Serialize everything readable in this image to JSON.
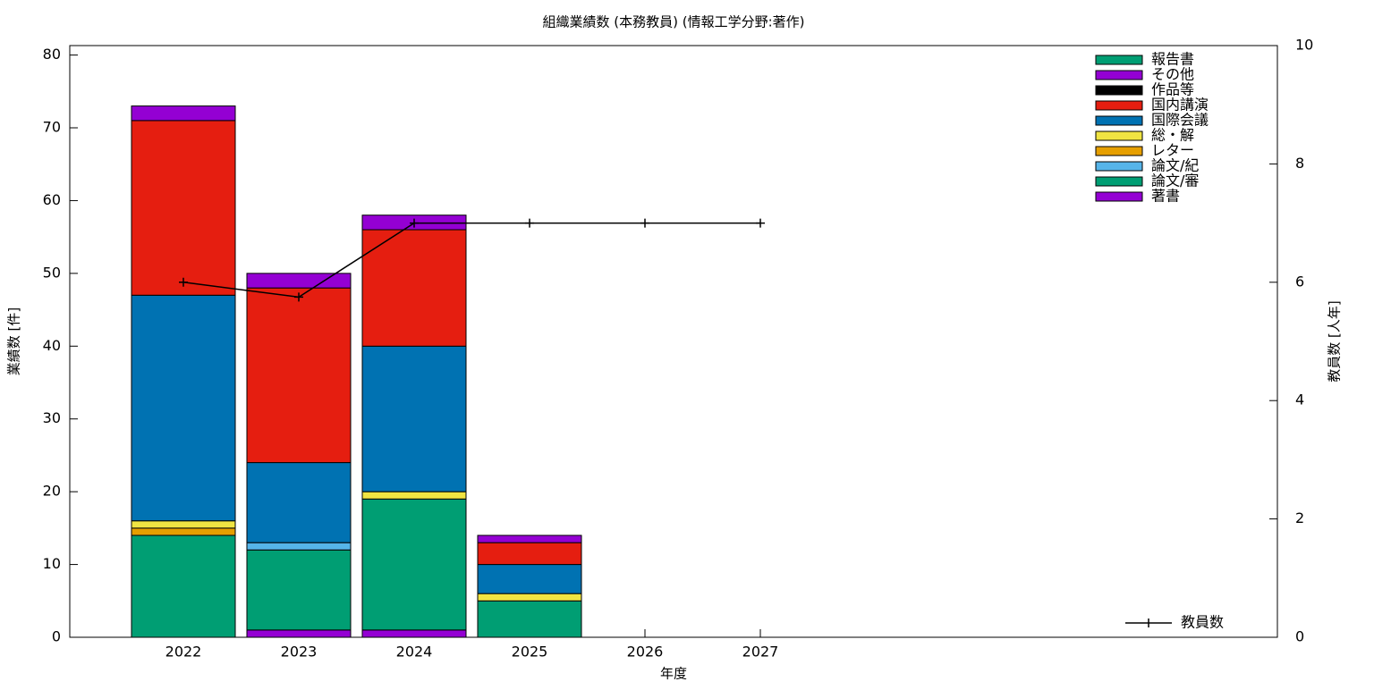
{
  "chart_data": {
    "type": "stacked-bar-line",
    "title": "組織業績数 (本務教員) (情報工学分野:著作)",
    "x_label": "年度",
    "y_label": "業績数 [件]",
    "y2_label": "教員数 [人年]",
    "categories": [
      "2022",
      "2023",
      "2024",
      "2025",
      "2026",
      "2027"
    ],
    "ylim": [
      0,
      81.3
    ],
    "yticks": [
      0,
      10,
      20,
      30,
      40,
      50,
      60,
      70,
      80
    ],
    "y2lim": [
      0,
      10
    ],
    "y2ticks": [
      0,
      2,
      4,
      6,
      8,
      10
    ],
    "series": [
      {
        "name": "著書",
        "color": "#9400d3",
        "values": [
          0,
          1,
          1,
          0,
          0,
          0
        ]
      },
      {
        "name": "論文/審",
        "color": "#009e73",
        "values": [
          14,
          11,
          18,
          5,
          0,
          0
        ]
      },
      {
        "name": "論文/紀",
        "color": "#56b4e9",
        "values": [
          0,
          1,
          0,
          0,
          0,
          0
        ]
      },
      {
        "name": "レター",
        "color": "#e69f00",
        "values": [
          1,
          0,
          0,
          0,
          0,
          0
        ]
      },
      {
        "name": "総・解",
        "color": "#f0e442",
        "values": [
          1,
          0,
          1,
          1,
          0,
          0
        ]
      },
      {
        "name": "国際会議",
        "color": "#0072b2",
        "values": [
          31,
          11,
          20,
          4,
          0,
          0
        ]
      },
      {
        "name": "国内講演",
        "color": "#e51e10",
        "values": [
          24,
          24,
          16,
          3,
          0,
          0
        ]
      },
      {
        "name": "作品等",
        "color": "#000000",
        "values": [
          0,
          0,
          0,
          0,
          0,
          0
        ]
      },
      {
        "name": "その他",
        "color": "#9400d3",
        "values": [
          2,
          2,
          2,
          1,
          0,
          0
        ]
      },
      {
        "name": "報告書",
        "color": "#009e73",
        "values": [
          0,
          0,
          0,
          0,
          0,
          0
        ]
      },
      {
        "name": "教員数",
        "color": "#000000",
        "axis": "y2",
        "type": "line",
        "values": [
          6,
          5.75,
          7,
          7,
          7,
          7
        ]
      }
    ]
  }
}
